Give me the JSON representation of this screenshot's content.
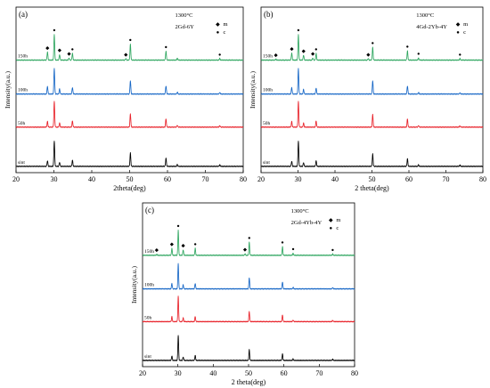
{
  "chart_data": [
    {
      "type": "line",
      "panel_label": "(a)",
      "xlabel": "2theta(deg)",
      "ylabel": "Intensity(a.u.)",
      "xlim": [
        20,
        80
      ],
      "xticks": [
        20,
        30,
        40,
        50,
        60,
        70,
        80
      ],
      "annotation_temp": "1300°C",
      "annotation_comp": "2Gd-6Y",
      "legend": [
        {
          "symbol": "◆",
          "label": "m"
        },
        {
          "symbol": "●",
          "label": "c"
        }
      ],
      "series": [
        {
          "name": "sint",
          "color": "#000000",
          "peaks": [
            [
              28.3,
              0.22
            ],
            [
              30.1,
              1.0
            ],
            [
              31.5,
              0.16
            ],
            [
              34.9,
              0.24
            ],
            [
              50.2,
              0.52
            ],
            [
              59.6,
              0.32
            ],
            [
              62.6,
              0.07
            ],
            [
              73.8,
              0.06
            ]
          ]
        },
        {
          "name": "50h",
          "color": "#e8222a",
          "peaks": [
            [
              28.3,
              0.22
            ],
            [
              30.1,
              1.0
            ],
            [
              31.5,
              0.16
            ],
            [
              34.9,
              0.24
            ],
            [
              50.2,
              0.52
            ],
            [
              59.6,
              0.32
            ],
            [
              62.6,
              0.07
            ],
            [
              73.8,
              0.06
            ]
          ]
        },
        {
          "name": "100h",
          "color": "#1767c6",
          "peaks": [
            [
              28.3,
              0.3
            ],
            [
              30.1,
              1.0
            ],
            [
              31.5,
              0.2
            ],
            [
              34.9,
              0.26
            ],
            [
              50.2,
              0.52
            ],
            [
              59.6,
              0.32
            ],
            [
              62.6,
              0.07
            ],
            [
              73.8,
              0.06
            ]
          ]
        },
        {
          "name": "150h",
          "color": "#2fa660",
          "peaks": [
            [
              28.3,
              0.32
            ],
            [
              30.1,
              1.0
            ],
            [
              31.5,
              0.22
            ],
            [
              34.0,
              0.08
            ],
            [
              34.9,
              0.26
            ],
            [
              49.0,
              0.06
            ],
            [
              50.2,
              0.62
            ],
            [
              59.6,
              0.34
            ],
            [
              62.6,
              0.07
            ],
            [
              73.8,
              0.06
            ]
          ]
        }
      ],
      "markers": [
        {
          "symbol": "◆",
          "x": 28.3
        },
        {
          "symbol": "●",
          "x": 30.1
        },
        {
          "symbol": "◆",
          "x": 31.5
        },
        {
          "symbol": "◆",
          "x": 34.0
        },
        {
          "symbol": "●",
          "x": 34.9
        },
        {
          "symbol": "◆",
          "x": 49.0
        },
        {
          "symbol": "●",
          "x": 50.2
        },
        {
          "symbol": "●",
          "x": 59.6
        },
        {
          "symbol": "●",
          "x": 73.8
        }
      ]
    },
    {
      "type": "line",
      "panel_label": "(b)",
      "xlabel": "2 theta(deg)",
      "ylabel": "Intensity(a.u.)",
      "xlim": [
        20,
        80
      ],
      "xticks": [
        20,
        30,
        40,
        50,
        60,
        70,
        80
      ],
      "annotation_temp": "1300°C",
      "annotation_comp": "4Gd-2Yb-4Y",
      "legend": [
        {
          "symbol": "◆",
          "label": "m"
        },
        {
          "symbol": "●",
          "label": "c"
        }
      ],
      "series": [
        {
          "name": "sint",
          "color": "#000000",
          "peaks": [
            [
              28.3,
              0.2
            ],
            [
              30.1,
              1.0
            ],
            [
              31.5,
              0.15
            ],
            [
              34.9,
              0.22
            ],
            [
              50.2,
              0.48
            ],
            [
              59.6,
              0.3
            ],
            [
              62.6,
              0.06
            ],
            [
              73.8,
              0.05
            ]
          ]
        },
        {
          "name": "50h",
          "color": "#e8222a",
          "peaks": [
            [
              28.3,
              0.22
            ],
            [
              30.1,
              1.0
            ],
            [
              31.5,
              0.16
            ],
            [
              34.9,
              0.24
            ],
            [
              50.2,
              0.5
            ],
            [
              59.6,
              0.32
            ],
            [
              62.6,
              0.06
            ],
            [
              73.8,
              0.05
            ]
          ]
        },
        {
          "name": "100h",
          "color": "#1767c6",
          "peaks": [
            [
              28.3,
              0.26
            ],
            [
              30.1,
              1.0
            ],
            [
              31.5,
              0.18
            ],
            [
              34.9,
              0.24
            ],
            [
              50.2,
              0.52
            ],
            [
              59.6,
              0.32
            ],
            [
              62.6,
              0.06
            ],
            [
              73.8,
              0.05
            ]
          ]
        },
        {
          "name": "150h",
          "color": "#2fa660",
          "peaks": [
            [
              24.0,
              0.04
            ],
            [
              28.3,
              0.28
            ],
            [
              30.1,
              1.0
            ],
            [
              31.5,
              0.2
            ],
            [
              34.0,
              0.08
            ],
            [
              34.9,
              0.26
            ],
            [
              49.0,
              0.06
            ],
            [
              50.2,
              0.5
            ],
            [
              59.6,
              0.36
            ],
            [
              62.6,
              0.08
            ],
            [
              73.8,
              0.06
            ]
          ]
        }
      ],
      "markers": [
        {
          "symbol": "◆",
          "x": 24.0
        },
        {
          "symbol": "◆",
          "x": 28.3
        },
        {
          "symbol": "●",
          "x": 30.1
        },
        {
          "symbol": "◆",
          "x": 31.5
        },
        {
          "symbol": "◆",
          "x": 34.0
        },
        {
          "symbol": "●",
          "x": 34.9
        },
        {
          "symbol": "◆",
          "x": 49.0
        },
        {
          "symbol": "●",
          "x": 50.2
        },
        {
          "symbol": "●",
          "x": 59.6
        },
        {
          "symbol": "●",
          "x": 62.6
        },
        {
          "symbol": "●",
          "x": 73.8
        }
      ]
    },
    {
      "type": "line",
      "panel_label": "(c)",
      "xlabel": "2 theta(deg)",
      "ylabel": "Intensity(a.u.)",
      "xlim": [
        20,
        80
      ],
      "xticks": [
        20,
        30,
        40,
        50,
        60,
        70,
        80
      ],
      "annotation_temp": "1300°C",
      "annotation_comp": "2Gd-4Yb-4Y",
      "legend": [
        {
          "symbol": "◆",
          "label": "m"
        },
        {
          "symbol": "●",
          "label": "c"
        }
      ],
      "series": [
        {
          "name": "sint",
          "color": "#000000",
          "peaks": [
            [
              28.3,
              0.18
            ],
            [
              30.1,
              1.0
            ],
            [
              31.5,
              0.14
            ],
            [
              34.9,
              0.2
            ],
            [
              50.2,
              0.42
            ],
            [
              59.6,
              0.26
            ],
            [
              62.6,
              0.06
            ],
            [
              73.8,
              0.05
            ]
          ]
        },
        {
          "name": "50h",
          "color": "#e8222a",
          "peaks": [
            [
              28.3,
              0.2
            ],
            [
              30.1,
              1.0
            ],
            [
              31.5,
              0.15
            ],
            [
              34.9,
              0.2
            ],
            [
              50.2,
              0.4
            ],
            [
              59.6,
              0.26
            ],
            [
              62.6,
              0.06
            ],
            [
              73.8,
              0.05
            ]
          ]
        },
        {
          "name": "100h",
          "color": "#1767c6",
          "peaks": [
            [
              28.3,
              0.22
            ],
            [
              30.1,
              1.0
            ],
            [
              31.5,
              0.16
            ],
            [
              34.9,
              0.22
            ],
            [
              50.2,
              0.44
            ],
            [
              59.6,
              0.28
            ],
            [
              62.6,
              0.06
            ],
            [
              73.8,
              0.05
            ]
          ]
        },
        {
          "name": "150h",
          "color": "#2fa660",
          "peaks": [
            [
              24.0,
              0.04
            ],
            [
              28.3,
              0.28
            ],
            [
              30.1,
              1.0
            ],
            [
              31.5,
              0.22
            ],
            [
              34.9,
              0.28
            ],
            [
              49.0,
              0.06
            ],
            [
              50.2,
              0.52
            ],
            [
              59.6,
              0.34
            ],
            [
              62.6,
              0.08
            ],
            [
              73.8,
              0.05
            ]
          ]
        }
      ],
      "markers": [
        {
          "symbol": "◆",
          "x": 24.0
        },
        {
          "symbol": "◆",
          "x": 28.3
        },
        {
          "symbol": "●",
          "x": 30.1
        },
        {
          "symbol": "◆",
          "x": 31.5
        },
        {
          "symbol": "●",
          "x": 34.9
        },
        {
          "symbol": "◆",
          "x": 49.0
        },
        {
          "symbol": "●",
          "x": 50.2
        },
        {
          "symbol": "●",
          "x": 59.6
        },
        {
          "symbol": "●",
          "x": 62.6
        },
        {
          "symbol": "●",
          "x": 73.8
        }
      ]
    }
  ]
}
